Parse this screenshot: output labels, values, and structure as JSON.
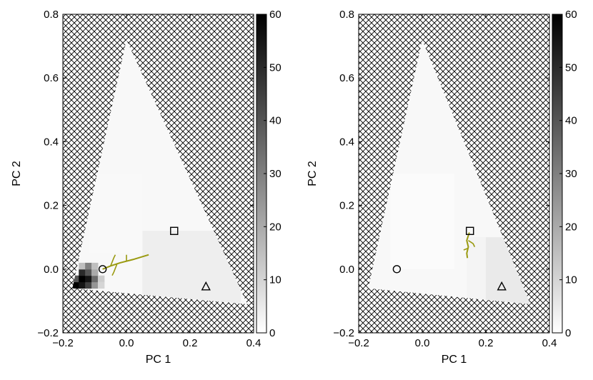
{
  "chart_data": [
    {
      "type": "heatmap",
      "title": "",
      "xlabel": "PC 1",
      "ylabel": "PC 2",
      "xlim": [
        -0.2,
        0.4
      ],
      "ylim": [
        -0.2,
        0.8
      ],
      "xticks": [
        "−0.2",
        "0.0",
        "0.2",
        "0.4"
      ],
      "yticks": [
        "−0.2",
        "0.0",
        "0.2",
        "0.4",
        "0.6",
        "0.8"
      ],
      "colorbar": {
        "min": 0,
        "max": 60,
        "ticks": [
          "0",
          "10",
          "20",
          "30",
          "40",
          "50",
          "60"
        ]
      },
      "region_vertices": [
        [
          0.0,
          0.72
        ],
        [
          -0.17,
          -0.06
        ],
        [
          0.38,
          -0.11
        ]
      ],
      "markers": [
        {
          "shape": "circle",
          "x": -0.075,
          "y": 0.0
        },
        {
          "shape": "square",
          "x": 0.15,
          "y": 0.12
        },
        {
          "shape": "triangle",
          "x": 0.25,
          "y": -0.055
        }
      ],
      "high_density_cells": [
        {
          "x": -0.16,
          "y": -0.05,
          "value": 60
        },
        {
          "x": -0.14,
          "y": -0.05,
          "value": 55
        },
        {
          "x": -0.12,
          "y": -0.05,
          "value": 45
        },
        {
          "x": -0.1,
          "y": -0.05,
          "value": 25
        },
        {
          "x": -0.16,
          "y": -0.03,
          "value": 40
        },
        {
          "x": -0.14,
          "y": -0.03,
          "value": 60
        },
        {
          "x": -0.12,
          "y": -0.03,
          "value": 55
        },
        {
          "x": -0.1,
          "y": -0.03,
          "value": 35
        },
        {
          "x": -0.14,
          "y": -0.01,
          "value": 50
        },
        {
          "x": -0.12,
          "y": -0.01,
          "value": 40
        },
        {
          "x": -0.1,
          "y": -0.01,
          "value": 20
        },
        {
          "x": -0.14,
          "y": 0.01,
          "value": 15
        },
        {
          "x": -0.12,
          "y": 0.01,
          "value": 30
        },
        {
          "x": -0.1,
          "y": 0.01,
          "value": 15
        },
        {
          "x": -0.08,
          "y": -0.03,
          "value": 12
        },
        {
          "x": -0.08,
          "y": -0.05,
          "value": 10
        }
      ],
      "trajectory": [
        [
          -0.075,
          0.0
        ],
        [
          -0.05,
          0.01
        ],
        [
          -0.02,
          0.02
        ],
        [
          0.02,
          0.03
        ],
        [
          0.07,
          0.045
        ]
      ],
      "trajectory_branches": [
        [
          [
            -0.05,
            0.01
          ],
          [
            -0.04,
            0.035
          ],
          [
            -0.035,
            0.045
          ]
        ],
        [
          [
            -0.03,
            0.015
          ],
          [
            -0.04,
            -0.01
          ],
          [
            -0.045,
            -0.02
          ]
        ],
        [
          [
            0.0,
            0.025
          ],
          [
            0.0,
            0.045
          ]
        ]
      ],
      "soft_regions": [
        {
          "x": [
            0.05,
            0.36
          ],
          "y": [
            -0.12,
            0.12
          ],
          "value": 4
        },
        {
          "x": [
            -0.12,
            0.05
          ],
          "y": [
            0.05,
            0.3
          ],
          "value": 1.5
        }
      ]
    },
    {
      "type": "heatmap",
      "title": "",
      "xlabel": "PC 1",
      "ylabel": "PC 2",
      "xlim": [
        -0.2,
        0.4
      ],
      "ylim": [
        -0.2,
        0.8
      ],
      "xticks": [
        "−0.2",
        "0.0",
        "0.2",
        "0.4"
      ],
      "yticks": [
        "−0.2",
        "0.0",
        "0.2",
        "0.4",
        "0.6",
        "0.8"
      ],
      "colorbar": {
        "min": 0,
        "max": 60,
        "ticks": [
          "0",
          "10",
          "20",
          "30",
          "40",
          "50",
          "60"
        ]
      },
      "region_vertices": [
        [
          0.0,
          0.72
        ],
        [
          -0.17,
          -0.06
        ],
        [
          0.34,
          -0.11
        ]
      ],
      "markers": [
        {
          "shape": "circle",
          "x": -0.08,
          "y": 0.0
        },
        {
          "shape": "square",
          "x": 0.15,
          "y": 0.12
        },
        {
          "shape": "triangle",
          "x": 0.25,
          "y": -0.055
        }
      ],
      "high_density_cells": [],
      "trajectory": [
        [
          0.148,
          0.115
        ],
        [
          0.14,
          0.09
        ],
        [
          0.145,
          0.07
        ],
        [
          0.14,
          0.05
        ],
        [
          0.142,
          0.035
        ]
      ],
      "trajectory_branches": [
        [
          [
            0.145,
            0.09
          ],
          [
            0.16,
            0.08
          ],
          [
            0.165,
            0.07
          ]
        ],
        [
          [
            0.143,
            0.065
          ],
          [
            0.13,
            0.06
          ]
        ]
      ],
      "soft_regions": [
        {
          "x": [
            0.16,
            0.34
          ],
          "y": [
            -0.12,
            0.1
          ],
          "value": 5
        },
        {
          "x": [
            0.14,
            0.2
          ],
          "y": [
            -0.12,
            0.1
          ],
          "value": 2.5
        },
        {
          "x": [
            -0.1,
            0.1
          ],
          "y": [
            0.0,
            0.3
          ],
          "value": 1
        }
      ]
    }
  ]
}
